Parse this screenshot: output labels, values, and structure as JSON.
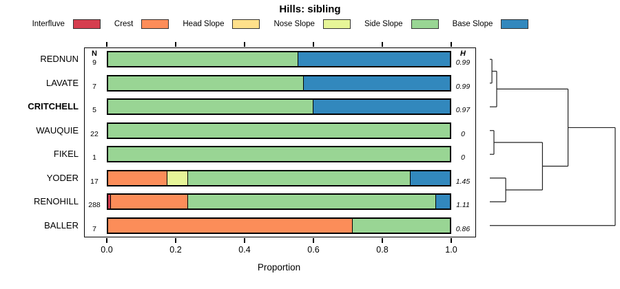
{
  "title": "Hills: sibling",
  "columns": {
    "n_header": "N",
    "h_header": "H"
  },
  "legend": [
    {
      "label": "Interfluve",
      "color": "#D53E4F"
    },
    {
      "label": "Crest",
      "color": "#FC8D59"
    },
    {
      "label": "Head Slope",
      "color": "#FEE08B"
    },
    {
      "label": "Nose Slope",
      "color": "#E6F598"
    },
    {
      "label": "Side Slope",
      "color": "#99D594"
    },
    {
      "label": "Base Slope",
      "color": "#3288BD"
    }
  ],
  "xaxis": {
    "label": "Proportion",
    "ticks": [
      "0.0",
      "0.2",
      "0.4",
      "0.6",
      "0.8",
      "1.0"
    ]
  },
  "chart_data": {
    "type": "bar",
    "variant": "horizontal-stacked",
    "title": "Hills: sibling",
    "xlabel": "Proportion",
    "xlim": [
      0,
      1
    ],
    "categories": [
      "Interfluve",
      "Crest",
      "Head Slope",
      "Nose Slope",
      "Side Slope",
      "Base Slope"
    ],
    "rows": [
      {
        "name": "REDNUN",
        "n": "9",
        "h": "0.99",
        "bold": false,
        "segments": [
          {
            "category": "Side Slope",
            "value": 0.556
          },
          {
            "category": "Base Slope",
            "value": 0.444
          }
        ]
      },
      {
        "name": "LAVATE",
        "n": "7",
        "h": "0.99",
        "bold": false,
        "segments": [
          {
            "category": "Side Slope",
            "value": 0.571
          },
          {
            "category": "Base Slope",
            "value": 0.429
          }
        ]
      },
      {
        "name": "CRITCHELL",
        "n": "5",
        "h": "0.97",
        "bold": true,
        "segments": [
          {
            "category": "Side Slope",
            "value": 0.6
          },
          {
            "category": "Base Slope",
            "value": 0.4
          }
        ]
      },
      {
        "name": "WAUQUIE",
        "n": "22",
        "h": "0",
        "bold": false,
        "segments": [
          {
            "category": "Side Slope",
            "value": 1.0
          }
        ]
      },
      {
        "name": "FIKEL",
        "n": "1",
        "h": "0",
        "bold": false,
        "segments": [
          {
            "category": "Side Slope",
            "value": 1.0
          }
        ]
      },
      {
        "name": "YODER",
        "n": "17",
        "h": "1.45",
        "bold": false,
        "segments": [
          {
            "category": "Crest",
            "value": 0.176
          },
          {
            "category": "Nose Slope",
            "value": 0.059
          },
          {
            "category": "Side Slope",
            "value": 0.647
          },
          {
            "category": "Base Slope",
            "value": 0.118
          }
        ]
      },
      {
        "name": "RENOHILL",
        "n": "288",
        "h": "1.11",
        "bold": false,
        "segments": [
          {
            "category": "Interfluve",
            "value": 0.011
          },
          {
            "category": "Crest",
            "value": 0.225
          },
          {
            "category": "Side Slope",
            "value": 0.719
          },
          {
            "category": "Base Slope",
            "value": 0.045
          }
        ]
      },
      {
        "name": "BALLER",
        "n": "7",
        "h": "0.86",
        "bold": false,
        "segments": [
          {
            "category": "Crest",
            "value": 0.714
          },
          {
            "category": "Side Slope",
            "value": 0.286
          }
        ]
      }
    ],
    "dendrogram": {
      "orientation": "right",
      "merges": [
        {
          "id": "M0",
          "a": "L0",
          "b": "L1",
          "height": 0.017
        },
        {
          "id": "M1",
          "a": "M0",
          "b": "L2",
          "height": 0.055
        },
        {
          "id": "M2",
          "a": "L3",
          "b": "L4",
          "height": 0.033
        },
        {
          "id": "M3",
          "a": "L5",
          "b": "L6",
          "height": 0.127
        },
        {
          "id": "M4",
          "a": "M2",
          "b": "M3",
          "height": 0.42
        },
        {
          "id": "M5",
          "a": "M1",
          "b": "M4",
          "height": 0.624
        },
        {
          "id": "M6",
          "a": "M5",
          "b": "L7",
          "height": 1.0
        }
      ]
    }
  }
}
